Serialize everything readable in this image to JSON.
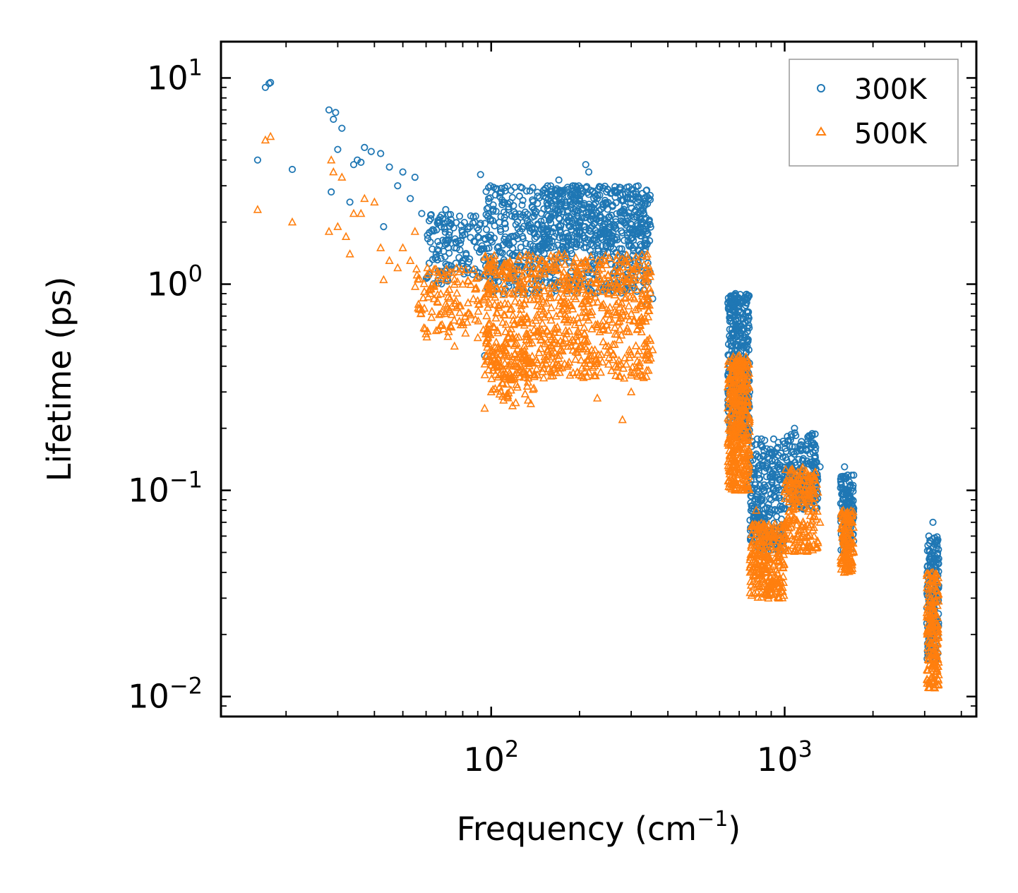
{
  "chart_data": {
    "type": "scatter",
    "xscale": "log",
    "yscale": "log",
    "xlim": [
      12,
      4500
    ],
    "ylim": [
      0.008,
      15
    ],
    "xlabel": "Frequency (cm",
    "xlabel_sup": "−1",
    "xlabel_end": ")",
    "ylabel": "Lifetime (ps)",
    "x_ticks": [
      {
        "value": 100,
        "base": "10",
        "exp": "2"
      },
      {
        "value": 1000,
        "base": "10",
        "exp": "3"
      }
    ],
    "y_ticks": [
      {
        "value": 0.01,
        "base": "10",
        "exp": "−2"
      },
      {
        "value": 0.1,
        "base": "10",
        "exp": "−1"
      },
      {
        "value": 1,
        "base": "10",
        "exp": "0"
      },
      {
        "value": 10,
        "base": "10",
        "exp": "1"
      }
    ],
    "legend_position": "top-right",
    "series": [
      {
        "name": "300K",
        "color": "#1f77b4",
        "marker": "circle",
        "points": [
          [
            16,
            4.0
          ],
          [
            17,
            9.0
          ],
          [
            17.5,
            9.4
          ],
          [
            17.7,
            9.5
          ],
          [
            21,
            3.6
          ],
          [
            28,
            7.0
          ],
          [
            28.5,
            2.8
          ],
          [
            29,
            6.3
          ],
          [
            29.5,
            6.8
          ],
          [
            30,
            4.5
          ],
          [
            31,
            5.7
          ],
          [
            33,
            2.5
          ],
          [
            34,
            3.8
          ],
          [
            35,
            4.0
          ],
          [
            36,
            3.9
          ],
          [
            37,
            4.6
          ],
          [
            39,
            4.4
          ],
          [
            42,
            4.3
          ],
          [
            43,
            1.9
          ],
          [
            45,
            3.7
          ],
          [
            48,
            3.0
          ],
          [
            50,
            3.5
          ],
          [
            53,
            2.6
          ],
          [
            55,
            3.3
          ],
          [
            58,
            2.2
          ],
          [
            62,
            1.6
          ],
          [
            66,
            2.0
          ],
          [
            70,
            2.3
          ],
          [
            75,
            1.5
          ],
          [
            80,
            1.3
          ],
          [
            88,
            2.0
          ],
          [
            92,
            3.4
          ],
          [
            95,
            0.45
          ],
          [
            98,
            2.6
          ],
          [
            100,
            1.2
          ],
          [
            105,
            1.5
          ],
          [
            110,
            0.9
          ],
          [
            120,
            1.7
          ],
          [
            130,
            1.2
          ],
          [
            140,
            2.3
          ],
          [
            150,
            1.9
          ],
          [
            160,
            2.8
          ],
          [
            170,
            3.2
          ],
          [
            180,
            2.1
          ],
          [
            190,
            3.0
          ],
          [
            200,
            2.6
          ],
          [
            210,
            3.8
          ],
          [
            215,
            3.5
          ],
          [
            220,
            2.2
          ],
          [
            230,
            2.6
          ],
          [
            240,
            1.9
          ],
          [
            250,
            1.6
          ],
          [
            265,
            2.8
          ],
          [
            280,
            1.4
          ],
          [
            300,
            1.1
          ],
          [
            320,
            1.2
          ],
          [
            340,
            0.8
          ],
          [
            355,
            0.85
          ],
          [
            650,
            0.4
          ],
          [
            680,
            0.9
          ],
          [
            700,
            0.85
          ],
          [
            720,
            0.6
          ],
          [
            760,
            0.3
          ],
          [
            800,
            0.15
          ],
          [
            850,
            0.1
          ],
          [
            900,
            0.09
          ],
          [
            950,
            0.08
          ],
          [
            1000,
            0.12
          ],
          [
            1080,
            0.2
          ],
          [
            1150,
            0.14
          ],
          [
            1250,
            0.17
          ],
          [
            1320,
            0.13
          ],
          [
            1600,
            0.13
          ],
          [
            1650,
            0.1
          ],
          [
            1700,
            0.07
          ],
          [
            3100,
            0.06
          ],
          [
            3200,
            0.07
          ],
          [
            3300,
            0.03
          ]
        ]
      },
      {
        "name": "500K",
        "color": "#ff7f0e",
        "marker": "triangle",
        "points": [
          [
            16,
            2.3
          ],
          [
            17,
            5.0
          ],
          [
            17.7,
            5.2
          ],
          [
            21,
            2.0
          ],
          [
            28,
            1.8
          ],
          [
            28.5,
            4.0
          ],
          [
            29,
            3.5
          ],
          [
            30,
            1.9
          ],
          [
            31,
            3.3
          ],
          [
            32,
            1.7
          ],
          [
            33,
            1.4
          ],
          [
            34,
            2.2
          ],
          [
            36,
            2.2
          ],
          [
            37,
            2.6
          ],
          [
            40,
            2.5
          ],
          [
            42,
            1.5
          ],
          [
            43,
            1.05
          ],
          [
            45,
            1.3
          ],
          [
            48,
            1.2
          ],
          [
            50,
            1.5
          ],
          [
            53,
            1.3
          ],
          [
            55,
            1.8
          ],
          [
            58,
            0.75
          ],
          [
            62,
            0.9
          ],
          [
            66,
            0.6
          ],
          [
            70,
            0.8
          ],
          [
            75,
            0.5
          ],
          [
            80,
            0.65
          ],
          [
            90,
            0.55
          ],
          [
            95,
            0.25
          ],
          [
            100,
            0.3
          ],
          [
            105,
            0.4
          ],
          [
            110,
            0.5
          ],
          [
            120,
            0.35
          ],
          [
            130,
            0.8
          ],
          [
            140,
            0.6
          ],
          [
            150,
            1.3
          ],
          [
            160,
            0.5
          ],
          [
            170,
            1.4
          ],
          [
            180,
            0.8
          ],
          [
            190,
            1.2
          ],
          [
            200,
            0.5
          ],
          [
            210,
            1.3
          ],
          [
            220,
            0.9
          ],
          [
            230,
            0.28
          ],
          [
            240,
            0.6
          ],
          [
            250,
            1.1
          ],
          [
            265,
            0.4
          ],
          [
            280,
            0.22
          ],
          [
            300,
            0.3
          ],
          [
            320,
            0.4
          ],
          [
            340,
            0.5
          ],
          [
            355,
            0.48
          ],
          [
            650,
            0.12
          ],
          [
            680,
            0.4
          ],
          [
            700,
            0.45
          ],
          [
            720,
            0.3
          ],
          [
            760,
            0.15
          ],
          [
            800,
            0.08
          ],
          [
            850,
            0.05
          ],
          [
            880,
            0.03
          ],
          [
            900,
            0.04
          ],
          [
            950,
            0.045
          ],
          [
            1000,
            0.06
          ],
          [
            1080,
            0.1
          ],
          [
            1100,
            0.12
          ],
          [
            1150,
            0.09
          ],
          [
            1250,
            0.1
          ],
          [
            1320,
            0.07
          ],
          [
            1600,
            0.04
          ],
          [
            1650,
            0.07
          ],
          [
            1700,
            0.045
          ],
          [
            3100,
            0.015
          ],
          [
            3200,
            0.04
          ],
          [
            3250,
            0.011
          ],
          [
            3300,
            0.02
          ]
        ]
      }
    ],
    "clusters": [
      {
        "series": "300K",
        "x": [
          60,
          95
        ],
        "y": [
          1.0,
          2.2
        ],
        "n": 140
      },
      {
        "series": "300K",
        "x": [
          95,
          350
        ],
        "y": [
          0.9,
          3.0
        ],
        "n": 700
      },
      {
        "series": "300K",
        "x": [
          150,
          340
        ],
        "y": [
          1.5,
          3.0
        ],
        "n": 220
      },
      {
        "series": "300K",
        "x": [
          640,
          760
        ],
        "y": [
          0.18,
          0.9
        ],
        "n": 380
      },
      {
        "series": "300K",
        "x": [
          760,
          1000
        ],
        "y": [
          0.05,
          0.18
        ],
        "n": 260
      },
      {
        "series": "300K",
        "x": [
          1000,
          1300
        ],
        "y": [
          0.08,
          0.19
        ],
        "n": 200
      },
      {
        "series": "300K",
        "x": [
          1550,
          1720
        ],
        "y": [
          0.05,
          0.12
        ],
        "n": 140
      },
      {
        "series": "300K",
        "x": [
          3050,
          3350
        ],
        "y": [
          0.015,
          0.06
        ],
        "n": 170
      },
      {
        "series": "500K",
        "x": [
          55,
          95
        ],
        "y": [
          0.55,
          1.2
        ],
        "n": 120
      },
      {
        "series": "500K",
        "x": [
          95,
          350
        ],
        "y": [
          0.35,
          1.4
        ],
        "n": 800
      },
      {
        "series": "500K",
        "x": [
          100,
          140
        ],
        "y": [
          0.25,
          0.5
        ],
        "n": 80
      },
      {
        "series": "500K",
        "x": [
          640,
          760
        ],
        "y": [
          0.1,
          0.45
        ],
        "n": 380
      },
      {
        "series": "500K",
        "x": [
          760,
          1000
        ],
        "y": [
          0.03,
          0.07
        ],
        "n": 260
      },
      {
        "series": "500K",
        "x": [
          1000,
          1300
        ],
        "y": [
          0.05,
          0.13
        ],
        "n": 200
      },
      {
        "series": "500K",
        "x": [
          1550,
          1720
        ],
        "y": [
          0.04,
          0.08
        ],
        "n": 140
      },
      {
        "series": "500K",
        "x": [
          3050,
          3350
        ],
        "y": [
          0.011,
          0.04
        ],
        "n": 170
      }
    ]
  }
}
